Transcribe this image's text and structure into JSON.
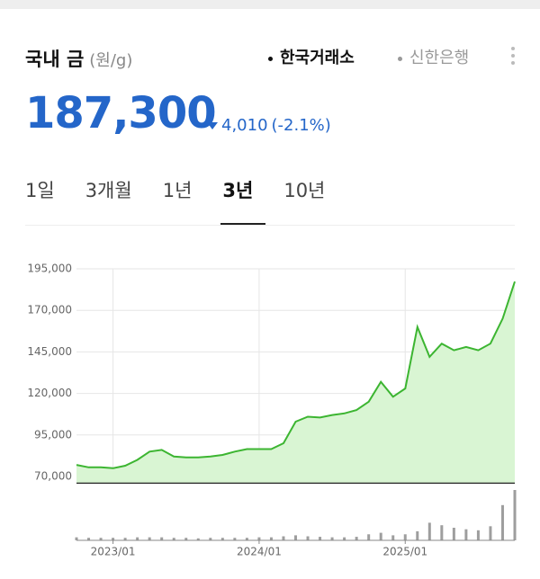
{
  "header": {
    "title": "국내 금",
    "unit": "(원/g)",
    "sources": [
      {
        "label": "한국거래소",
        "active": true
      },
      {
        "label": "신한은행",
        "active": false
      }
    ]
  },
  "price": {
    "value": "187,300",
    "change": "4,010",
    "change_pct": "(-2.1%)",
    "direction": "down"
  },
  "tabs": [
    {
      "label": "1일",
      "selected": false
    },
    {
      "label": "3개월",
      "selected": false
    },
    {
      "label": "1년",
      "selected": false
    },
    {
      "label": "3년",
      "selected": true
    },
    {
      "label": "10년",
      "selected": false
    }
  ],
  "chart_data": [
    {
      "type": "line",
      "x": [
        "2022/10",
        "2022/11",
        "2022/12",
        "2023/01",
        "2023/02",
        "2023/03",
        "2023/04",
        "2023/05",
        "2023/06",
        "2023/07",
        "2023/08",
        "2023/09",
        "2023/10",
        "2023/11",
        "2023/12",
        "2024/01",
        "2024/02",
        "2024/03",
        "2024/04",
        "2024/05",
        "2024/06",
        "2024/07",
        "2024/08",
        "2024/09",
        "2024/10",
        "2024/11",
        "2024/12",
        "2025/01",
        "2025/02",
        "2025/03",
        "2025/04",
        "2025/05",
        "2025/06",
        "2025/07",
        "2025/08",
        "2025/09",
        "2025/10"
      ],
      "values": [
        77000,
        75500,
        75500,
        75000,
        76500,
        80000,
        85000,
        86000,
        82000,
        81500,
        81500,
        82000,
        83000,
        85000,
        86500,
        86500,
        86500,
        90000,
        103000,
        106000,
        105500,
        107000,
        108000,
        110000,
        115000,
        127000,
        118000,
        123000,
        160000,
        142000,
        150000,
        146000,
        148000,
        146000,
        150000,
        165000,
        187300
      ],
      "color": "#3cb531",
      "area_color": "#d9f5d3",
      "ylim": [
        66000,
        195000
      ],
      "yticks": [
        {
          "value": 70000,
          "label": "70,000"
        },
        {
          "value": 95000,
          "label": "95,000"
        },
        {
          "value": 120000,
          "label": "120,000"
        },
        {
          "value": 145000,
          "label": "145,000"
        },
        {
          "value": 170000,
          "label": "170,000"
        },
        {
          "value": 195000,
          "label": "195,000"
        }
      ],
      "xticks": [
        "2023/01",
        "2024/01",
        "2025/01"
      ],
      "grid": true
    },
    {
      "type": "bar",
      "values": [
        6,
        5,
        5,
        5,
        5,
        6,
        6,
        6,
        5,
        5,
        4,
        5,
        5,
        5,
        5,
        6,
        6,
        8,
        10,
        8,
        7,
        6,
        6,
        7,
        12,
        15,
        10,
        12,
        18,
        35,
        30,
        25,
        22,
        20,
        28,
        70,
        100
      ],
      "color": "#9e9e9e",
      "ylim": [
        0,
        100
      ]
    }
  ]
}
